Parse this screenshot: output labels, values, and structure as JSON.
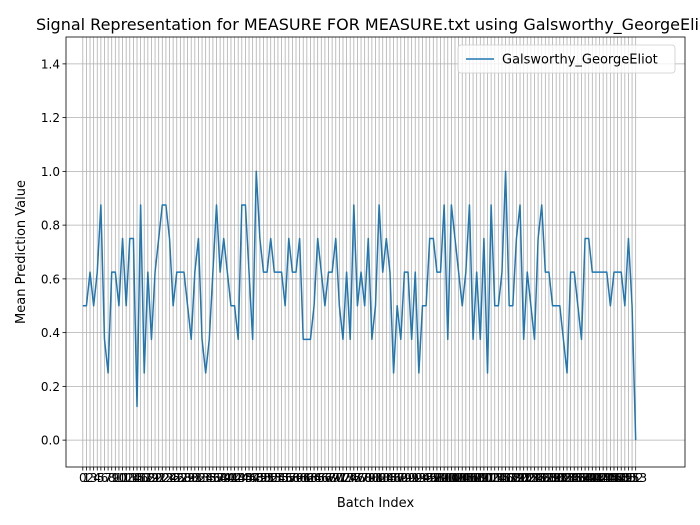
{
  "chart_data": {
    "type": "line",
    "title": "Signal Representation for MEASURE FOR MEASURE.txt using Galsworthy_GeorgeEliot",
    "xlabel": "Batch Index",
    "ylabel": "Mean Prediction Value",
    "ylim": [
      -0.1,
      1.5
    ],
    "yticks": [
      0.0,
      0.2,
      0.4,
      0.6,
      0.8,
      1.0,
      1.2,
      1.4
    ],
    "ytick_labels": [
      "0.0",
      "0.2",
      "0.4",
      "0.6",
      "0.8",
      "1.0",
      "1.2",
      "1.4"
    ],
    "xlim": [
      -4.65,
      166.65
    ],
    "xticks_every": 1,
    "grid": true,
    "legend": {
      "location": "upper right"
    },
    "series": [
      {
        "name": "Galsworthy_GeorgeEliot",
        "color": "#1f77b4",
        "values": [
          0.5,
          0.5,
          0.625,
          0.5,
          0.625,
          0.875,
          0.375,
          0.25,
          0.625,
          0.625,
          0.5,
          0.75,
          0.5,
          0.75,
          0.75,
          0.125,
          0.875,
          0.25,
          0.625,
          0.375,
          0.625,
          0.75,
          0.875,
          0.875,
          0.75,
          0.5,
          0.625,
          0.625,
          0.625,
          0.5,
          0.375,
          0.625,
          0.75,
          0.375,
          0.25,
          0.375,
          0.625,
          0.875,
          0.625,
          0.75,
          0.625,
          0.5,
          0.5,
          0.375,
          0.875,
          0.875,
          0.625,
          0.375,
          1.0,
          0.75,
          0.625,
          0.625,
          0.75,
          0.625,
          0.625,
          0.625,
          0.5,
          0.75,
          0.625,
          0.625,
          0.75,
          0.375,
          0.375,
          0.375,
          0.5,
          0.75,
          0.625,
          0.5,
          0.625,
          0.625,
          0.75,
          0.5,
          0.375,
          0.625,
          0.375,
          0.875,
          0.5,
          0.625,
          0.5,
          0.75,
          0.375,
          0.5,
          0.875,
          0.625,
          0.75,
          0.625,
          0.25,
          0.5,
          0.375,
          0.625,
          0.625,
          0.375,
          0.625,
          0.25,
          0.5,
          0.5,
          0.75,
          0.75,
          0.625,
          0.625,
          0.875,
          0.375,
          0.875,
          0.75,
          0.625,
          0.5,
          0.625,
          0.875,
          0.375,
          0.625,
          0.375,
          0.75,
          0.25,
          0.875,
          0.5,
          0.5,
          0.625,
          1.0,
          0.5,
          0.5,
          0.75,
          0.875,
          0.375,
          0.625,
          0.5,
          0.375,
          0.75,
          0.875,
          0.625,
          0.625,
          0.5,
          0.5,
          0.5,
          0.375,
          0.25,
          0.625,
          0.625,
          0.5,
          0.375,
          0.75,
          0.75,
          0.625,
          0.625,
          0.625,
          0.625,
          0.625,
          0.5,
          0.625,
          0.625,
          0.625,
          0.5,
          0.75,
          0.5,
          0.0
        ]
      }
    ]
  }
}
